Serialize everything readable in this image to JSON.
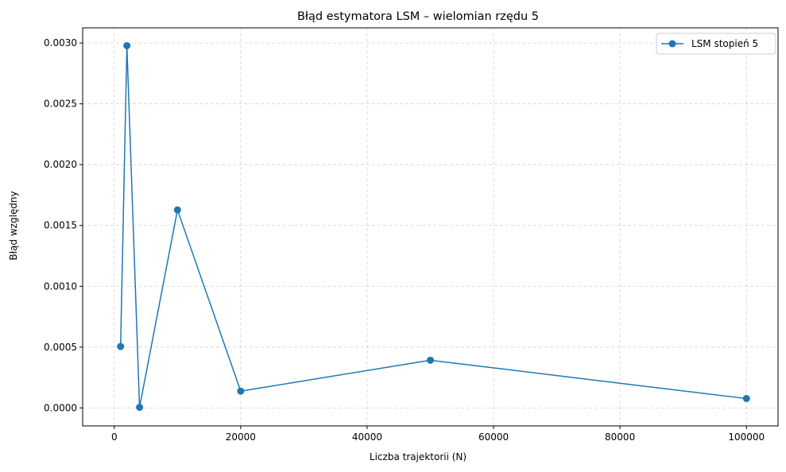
{
  "chart_data": {
    "type": "line",
    "title": "Błąd estymatora LSM – wielomian rzędu 5",
    "xlabel": "Liczba trajektorii (N)",
    "ylabel": "Błąd względny",
    "xlim": [
      -5000,
      105000
    ],
    "ylim": [
      -0.000148,
      0.003125
    ],
    "xticks": [
      0,
      20000,
      40000,
      60000,
      80000,
      100000
    ],
    "xtick_labels": [
      "0",
      "20000",
      "40000",
      "60000",
      "80000",
      "100000"
    ],
    "yticks": [
      0.0,
      0.0005,
      0.001,
      0.0015,
      0.002,
      0.0025,
      0.003
    ],
    "ytick_labels": [
      "0.0000",
      "0.0005",
      "0.0010",
      "0.0015",
      "0.0020",
      "0.0025",
      "0.0030"
    ],
    "grid": true,
    "legend_position": "top-right",
    "series": [
      {
        "name": "LSM stopień 5",
        "color": "#1f77b4",
        "marker": "circle",
        "x": [
          1000,
          2000,
          4000,
          10000,
          20000,
          50000,
          100000
        ],
        "y": [
          0.000505,
          0.002978,
          5e-06,
          0.001628,
          0.000138,
          0.000392,
          7.7e-05
        ]
      }
    ]
  }
}
